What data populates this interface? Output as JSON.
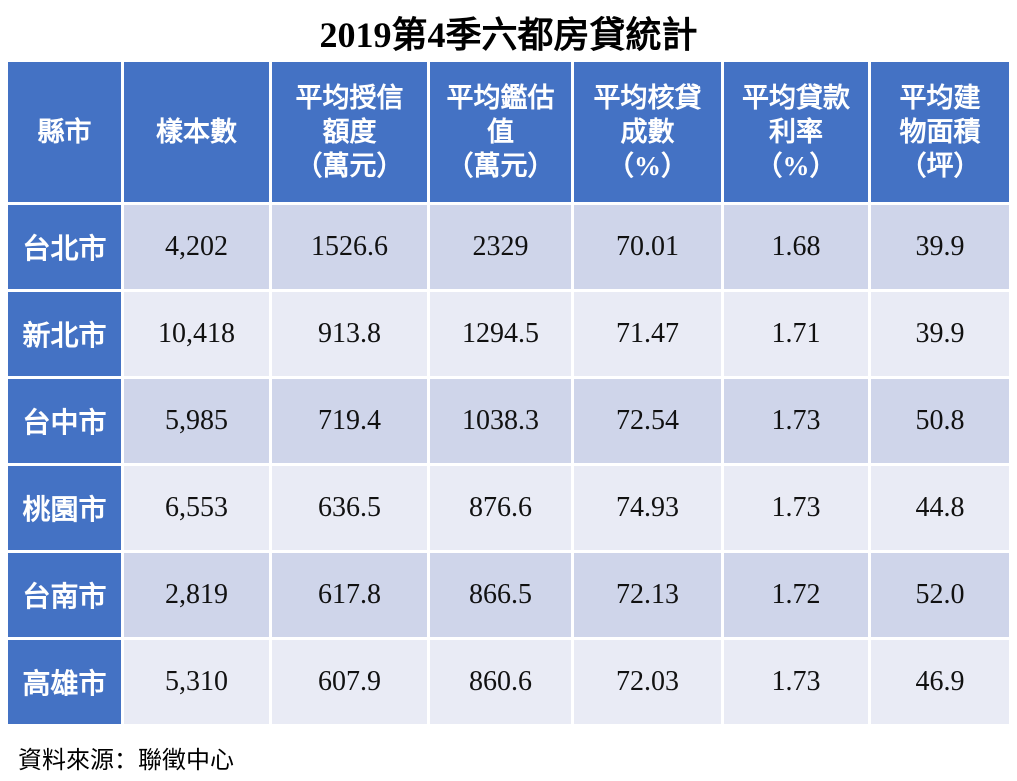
{
  "title": "2019第4季六都房貸統計",
  "table": {
    "header": [
      [
        "縣市"
      ],
      [
        "樣本數"
      ],
      [
        "平均授信",
        "額度",
        "（萬元）"
      ],
      [
        "平均鑑估",
        "值",
        "（萬元）"
      ],
      [
        "平均核貸",
        "成數",
        "（%）"
      ],
      [
        "平均貸款",
        "利率",
        "（%）"
      ],
      [
        "平均建",
        "物面積",
        "（坪）"
      ]
    ],
    "rows": [
      [
        "台北市",
        "4,202",
        "1526.6",
        "2329",
        "70.01",
        "1.68",
        "39.9"
      ],
      [
        "新北市",
        "10,418",
        "913.8",
        "1294.5",
        "71.47",
        "1.71",
        "39.9"
      ],
      [
        "台中市",
        "5,985",
        "719.4",
        "1038.3",
        "72.54",
        "1.73",
        "50.8"
      ],
      [
        "桃園市",
        "6,553",
        "636.5",
        "876.6",
        "74.93",
        "1.73",
        "44.8"
      ],
      [
        "台南市",
        "2,819",
        "617.8",
        "866.5",
        "72.13",
        "1.72",
        "52.0"
      ],
      [
        "高雄市",
        "5,310",
        "607.9",
        "860.6",
        "72.03",
        "1.73",
        "46.9"
      ]
    ]
  },
  "source": "資料來源：聯徵中心"
}
